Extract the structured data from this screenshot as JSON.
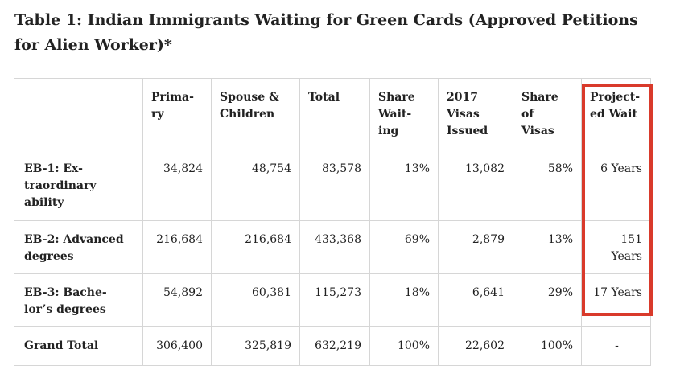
{
  "title": "Table 1: Indian Immigrants Waiting for Green Cards (Approved Petitions for Alien Worker)*",
  "columns": [
    "",
    "Prima-ry",
    "Spouse & Children",
    "Total",
    "Share Wait-ing",
    "2017 Visas Issued",
    "Share of Visas",
    "Project-ed Wait"
  ],
  "column_lines": [
    [],
    [
      "Prima-",
      "ry"
    ],
    [
      "Spouse &",
      "Children"
    ],
    [
      "Total"
    ],
    [
      "Share",
      "Wait-",
      "ing"
    ],
    [
      "2017",
      "Visas",
      "Issued"
    ],
    [
      "Share",
      "of",
      "Visas"
    ],
    [
      "Project-",
      "ed Wait"
    ]
  ],
  "rows": [
    {
      "label_lines": [
        "EB-1: Ex-",
        "traordinary",
        "ability"
      ],
      "primary": "34,824",
      "spouse_children": "48,754",
      "total": "83,578",
      "share_waiting": "13%",
      "visas_2017": "13,082",
      "share_visas": "58%",
      "projected_wait": "6 Years"
    },
    {
      "label_lines": [
        "EB-2: Advanced",
        "degrees"
      ],
      "primary": "216,684",
      "spouse_children": "216,684",
      "total": "433,368",
      "share_waiting": "69%",
      "visas_2017": "2,879",
      "share_visas": "13%",
      "projected_wait": "151 Years"
    },
    {
      "label_lines": [
        "EB-3: Bache-",
        "lor’s degrees"
      ],
      "primary": "54,892",
      "spouse_children": "60,381",
      "total": "115,273",
      "share_waiting": "18%",
      "visas_2017": "6,641",
      "share_visas": "29%",
      "projected_wait": "17 Years"
    },
    {
      "label_lines": [
        "Grand Total"
      ],
      "primary": "306,400",
      "spouse_children": "325,819",
      "total": "632,219",
      "share_waiting": "100%",
      "visas_2017": "22,602",
      "share_visas": "100%",
      "projected_wait": "-"
    }
  ],
  "colors": {
    "highlight": "#d93a2b",
    "border": "#d6d6d6",
    "text": "#222222"
  }
}
